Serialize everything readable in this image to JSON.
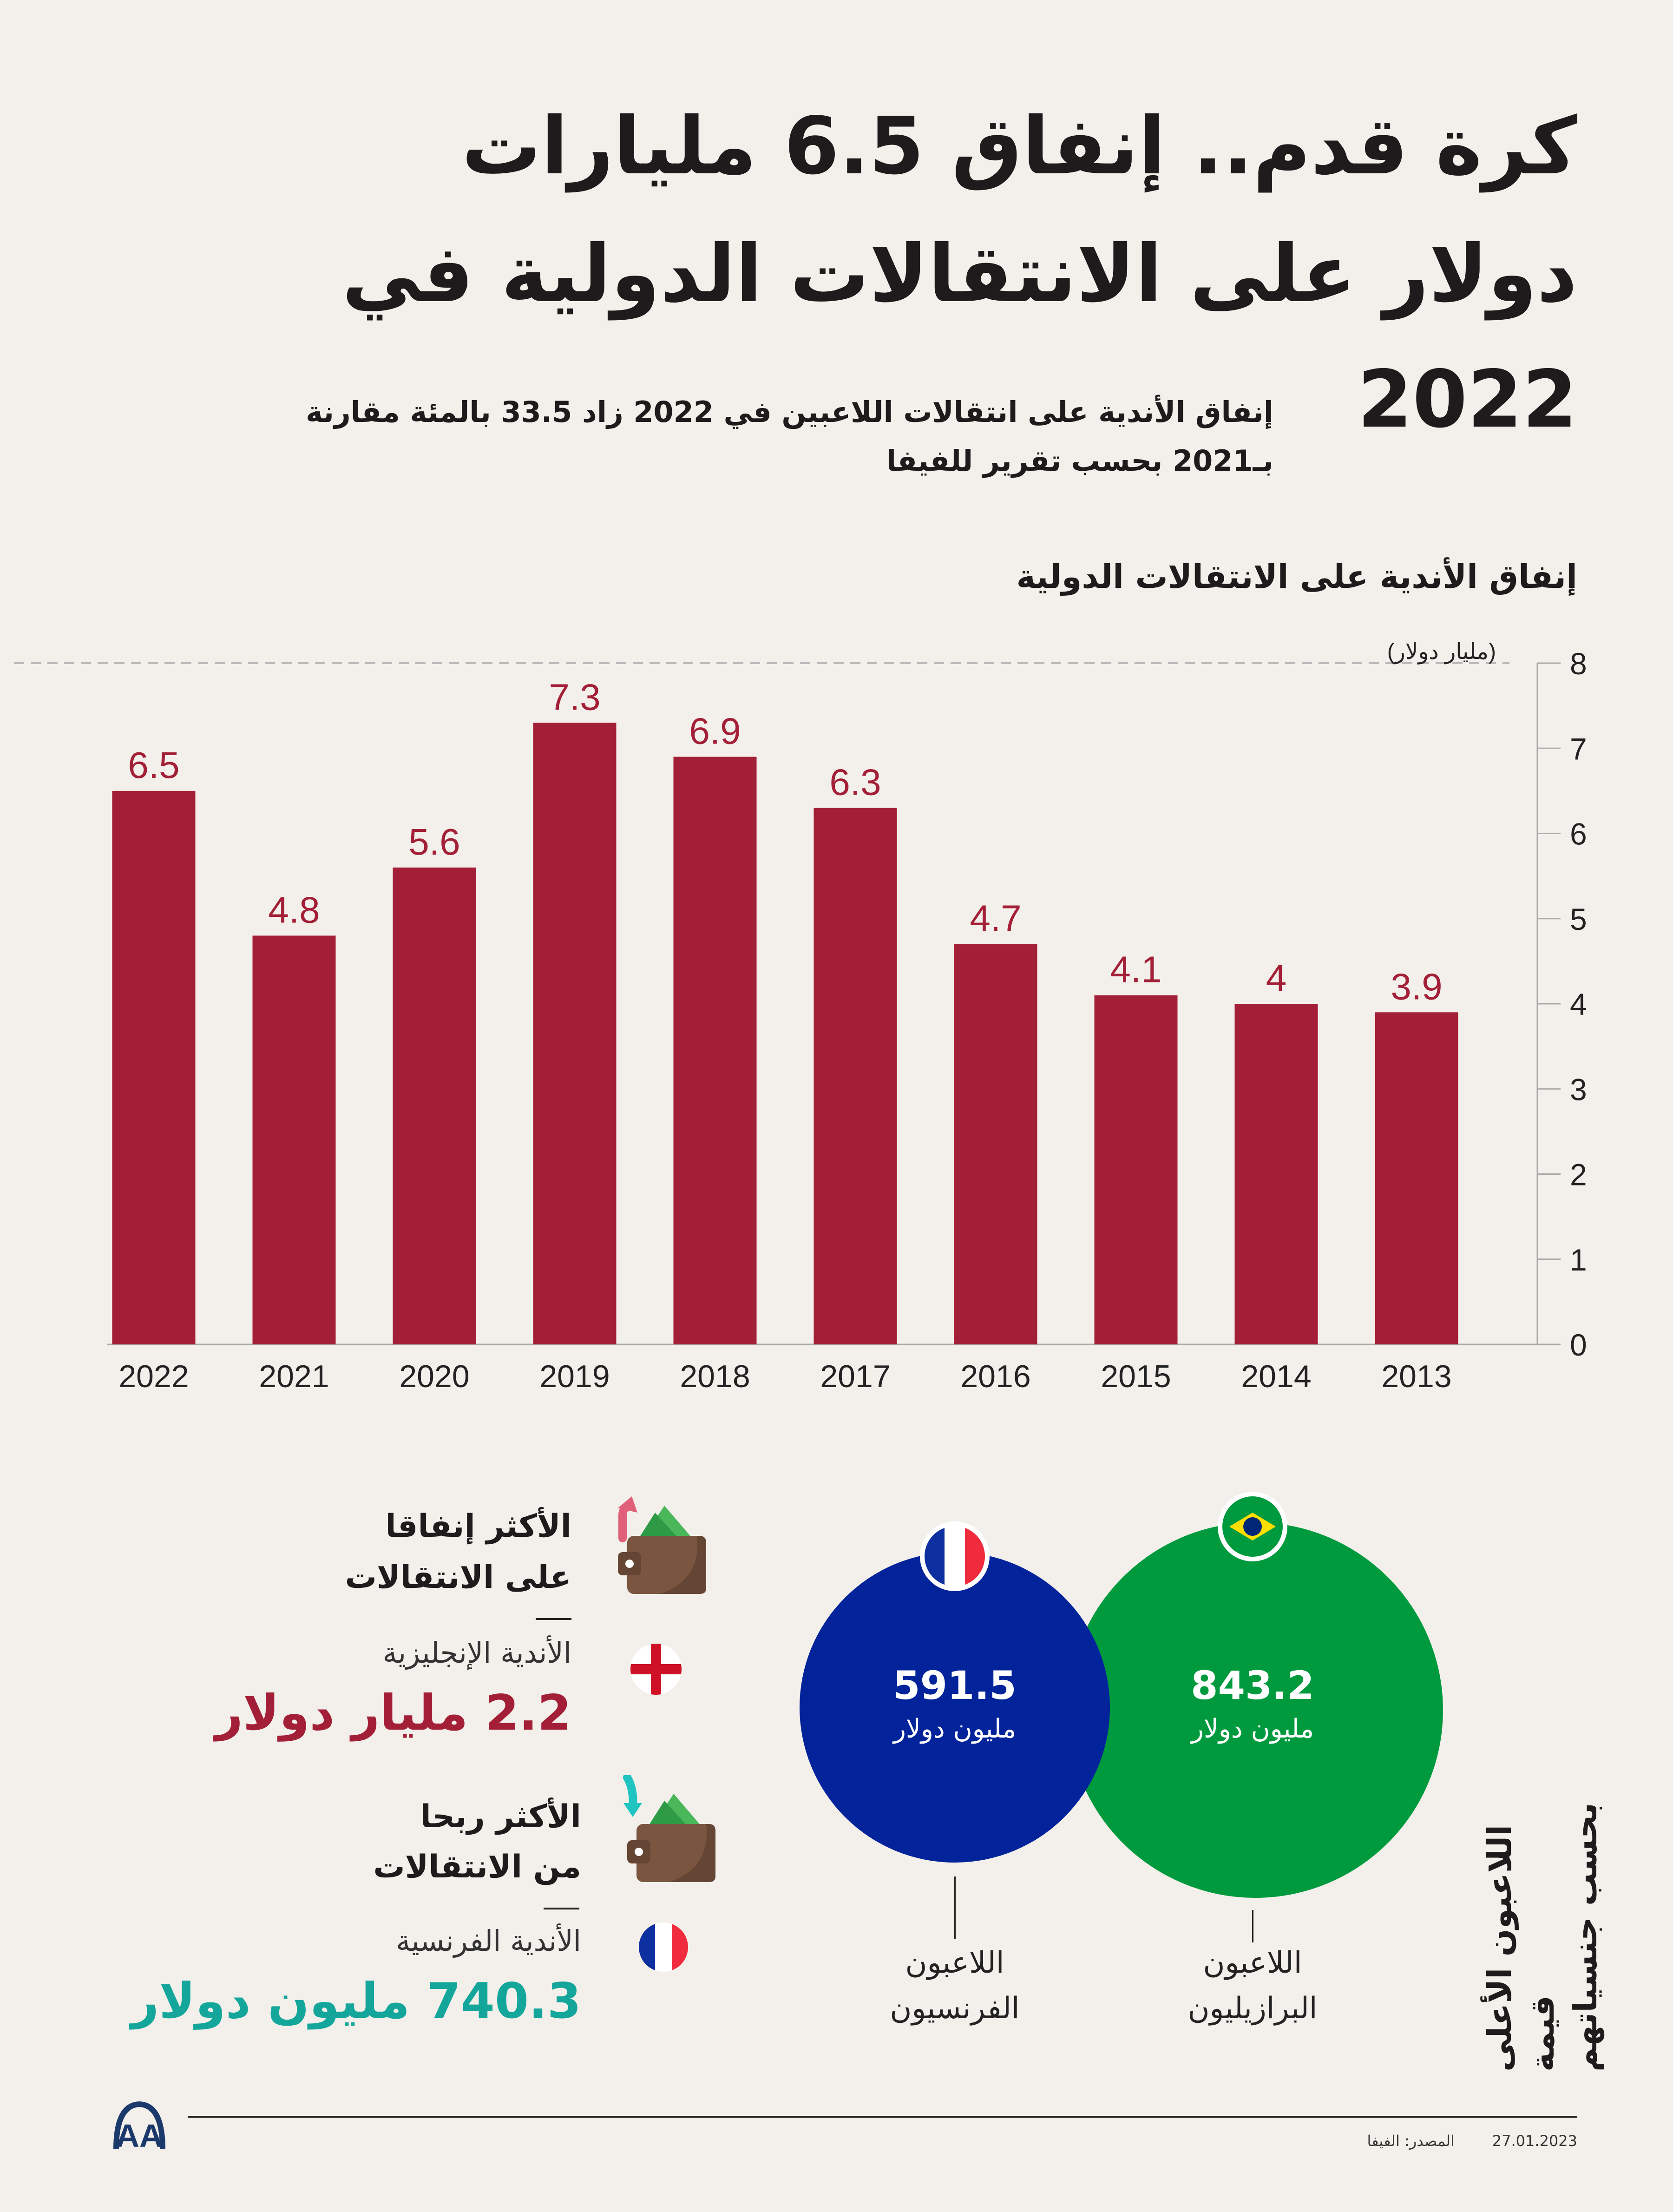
{
  "header": {
    "title_lines": [
      "كرة قدم.. إنفاق 6.5 مليارات",
      "دولار على الانتقالات الدولية في",
      "2022"
    ],
    "subtitle_lines": [
      "إنفاق الأندية على انتقالات اللاعبين في 2022 زاد 33.5 بالمئة مقارنة",
      "بـ2021 بحسب تقرير للفيفا"
    ]
  },
  "chart_data": {
    "type": "bar",
    "title": "إنفاق الأندية على الانتقالات الدولية",
    "ylabel": "(مليار دولار)",
    "xlabel": "",
    "categories": [
      "2022",
      "2021",
      "2020",
      "2019",
      "2018",
      "2017",
      "2016",
      "2015",
      "2014",
      "2013"
    ],
    "values": [
      6.5,
      4.8,
      5.6,
      7.3,
      6.9,
      6.3,
      4.7,
      4.1,
      4,
      3.9
    ],
    "value_labels": [
      "6.5",
      "4.8",
      "5.6",
      "7.3",
      "6.9",
      "6.3",
      "4.7",
      "4.1",
      "4",
      "3.9"
    ],
    "ylim": [
      0,
      8
    ],
    "yticks": [
      "0",
      "1",
      "2",
      "3",
      "4",
      "5",
      "6",
      "7",
      "8"
    ],
    "grid": "dashed line at top only",
    "axis_position": "right",
    "bar_color": "#A31F37",
    "label_color": "#A31F37"
  },
  "spending": {
    "heading_lines": [
      "الأكثر إنفاقا",
      "على الانتقالات"
    ],
    "clubs": "الأندية الإنجليزية",
    "amount": "2.2 مليار دولار",
    "color": "#A31F37"
  },
  "profit": {
    "heading_lines": [
      "الأكثر ربحا",
      "من الانتقالات"
    ],
    "clubs": "الأندية الفرنسية",
    "amount": "740.3 مليون دولار",
    "color": "#14A69B"
  },
  "players": {
    "title_lines": [
      "اللاعبون الأعلى قيمة",
      "بحسب جنسياتهم"
    ],
    "brazil": {
      "value": "843.2",
      "unit": "مليون دولار",
      "label_lines": [
        "اللاعبون",
        "البرازيليون"
      ],
      "color": "#009A3E"
    },
    "france": {
      "value": "591.5",
      "unit": "مليون دولار",
      "label_lines": [
        "اللاعبون",
        "الفرنسيون"
      ],
      "color": "#03239A"
    }
  },
  "footer": {
    "logo": "AA",
    "source": "المصدر: الفيفا",
    "date": "27.01.2023"
  }
}
